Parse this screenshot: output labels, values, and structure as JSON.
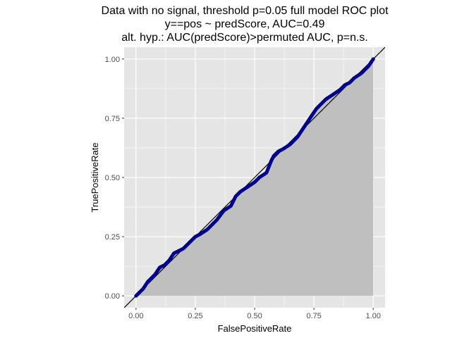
{
  "chart_data": {
    "type": "line",
    "title_lines": [
      "Data with no signal, threshold p=0.05 full model ROC plot",
      "y==pos ~ predScore, AUC=0.49",
      "alt. hyp.: AUC(predScore)>permuted AUC, p=n.s."
    ],
    "xlabel": "FalsePositiveRate",
    "ylabel": "TruePositiveRate",
    "xlim": [
      -0.05,
      1.05
    ],
    "ylim": [
      -0.05,
      1.05
    ],
    "x_ticks": [
      0,
      0.25,
      0.5,
      0.75,
      1
    ],
    "x_tick_labels": [
      "0.00",
      "0.25",
      "0.50",
      "0.75",
      "1.00"
    ],
    "y_ticks": [
      0,
      0.25,
      0.5,
      0.75,
      1
    ],
    "y_tick_labels": [
      "0.00",
      "0.25",
      "0.50",
      "0.75",
      "1.00"
    ],
    "grid": true,
    "diagonal_reference_line": true,
    "area_fill_under_curve": true,
    "colors": {
      "panel_background": "#e5e5e5",
      "grid": "#ffffff",
      "area": "#bfbfbf",
      "curve": "#00008b",
      "diagonal": "#000000"
    },
    "series": [
      {
        "x": [
          0,
          0.01,
          0.02,
          0.03,
          0.05,
          0.06,
          0.08,
          0.1,
          0.12,
          0.14,
          0.16,
          0.18,
          0.2,
          0.22,
          0.24,
          0.25,
          0.27,
          0.3,
          0.33,
          0.34,
          0.37,
          0.4,
          0.42,
          0.44,
          0.47,
          0.5,
          0.52,
          0.55,
          0.57,
          0.58,
          0.6,
          0.62,
          0.65,
          0.68,
          0.7,
          0.72,
          0.74,
          0.76,
          0.78,
          0.8,
          0.83,
          0.86,
          0.88,
          0.9,
          0.92,
          0.95,
          0.98,
          1
        ],
        "y": [
          0,
          0.01,
          0.02,
          0.03,
          0.06,
          0.07,
          0.09,
          0.12,
          0.13,
          0.15,
          0.18,
          0.19,
          0.2,
          0.22,
          0.24,
          0.25,
          0.26,
          0.28,
          0.31,
          0.32,
          0.36,
          0.38,
          0.42,
          0.44,
          0.46,
          0.48,
          0.5,
          0.52,
          0.57,
          0.59,
          0.61,
          0.62,
          0.64,
          0.67,
          0.7,
          0.73,
          0.76,
          0.79,
          0.81,
          0.83,
          0.85,
          0.87,
          0.89,
          0.9,
          0.92,
          0.94,
          0.97,
          1
        ]
      }
    ]
  }
}
